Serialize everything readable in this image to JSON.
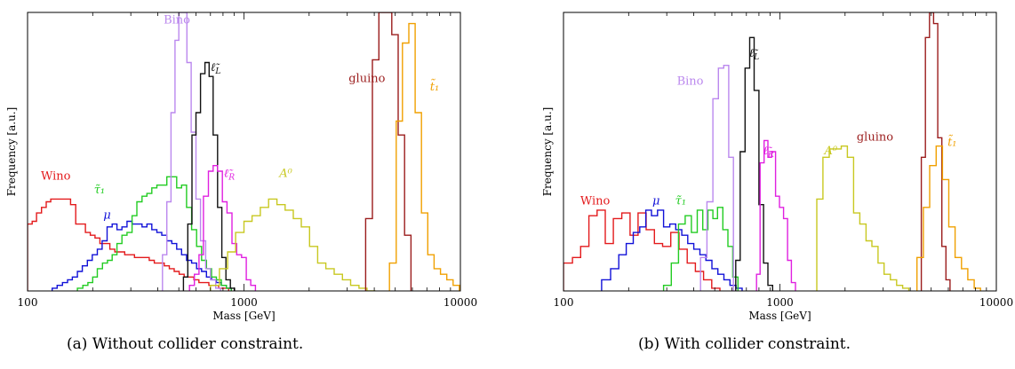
{
  "chart_data": [
    {
      "type": "histogram",
      "caption": "(a)  Without collider constraint.",
      "xlabel": "Mass [GeV]",
      "ylabel": "Frequency [a.u.]",
      "xscale": "log",
      "xlim": [
        100,
        10000
      ],
      "ylim": [
        0,
        1
      ],
      "xticks": [
        "100",
        "1000",
        "10000"
      ],
      "grid": false,
      "series": [
        {
          "name": "Wino",
          "color": "#e31a1c",
          "label_pos": [
            135,
            0.4
          ],
          "edges": [
            100,
            105,
            110,
            116,
            122,
            128,
            135,
            142,
            150,
            158,
            167,
            176,
            185,
            195,
            205,
            216,
            228,
            240,
            253,
            267,
            281,
            296,
            312,
            329,
            347,
            365,
            385,
            406,
            428,
            452,
            476,
            502,
            529,
            557,
            587,
            619,
            652,
            688,
            725,
            764,
            805,
            850
          ],
          "values": [
            0.24,
            0.25,
            0.28,
            0.3,
            0.32,
            0.33,
            0.33,
            0.33,
            0.33,
            0.31,
            0.24,
            0.24,
            0.21,
            0.2,
            0.19,
            0.17,
            0.17,
            0.15,
            0.14,
            0.14,
            0.13,
            0.13,
            0.12,
            0.12,
            0.12,
            0.11,
            0.1,
            0.1,
            0.09,
            0.08,
            0.07,
            0.06,
            0.05,
            0.05,
            0.04,
            0.03,
            0.03,
            0.02,
            0.02,
            0.01,
            0.01
          ]
        },
        {
          "name": "μ",
          "color": "#1111d8",
          "label_pos": [
            233,
            0.26
          ],
          "edges": [
            130,
            137,
            145,
            153,
            161,
            170,
            179,
            189,
            199,
            210,
            221,
            233,
            246,
            259,
            273,
            288,
            304,
            320,
            338,
            356,
            375,
            396,
            417,
            440,
            464,
            489,
            515,
            543,
            573,
            604,
            637,
            671,
            708,
            746,
            786,
            829,
            874
          ],
          "values": [
            0.01,
            0.02,
            0.03,
            0.04,
            0.05,
            0.07,
            0.09,
            0.11,
            0.13,
            0.15,
            0.18,
            0.23,
            0.24,
            0.22,
            0.23,
            0.25,
            0.24,
            0.24,
            0.23,
            0.24,
            0.22,
            0.21,
            0.2,
            0.18,
            0.17,
            0.15,
            0.13,
            0.11,
            0.1,
            0.08,
            0.07,
            0.05,
            0.04,
            0.03,
            0.02,
            0.01
          ]
        },
        {
          "name": "τ̃₁",
          "color": "#22cc22",
          "label_pos": [
            215,
            0.35
          ],
          "edges": [
            170,
            180,
            190,
            200,
            210,
            222,
            234,
            246,
            259,
            273,
            288,
            304,
            320,
            338,
            356,
            375,
            396,
            417,
            440,
            464,
            489,
            515,
            543,
            573,
            604,
            637,
            671,
            708,
            746,
            786,
            829,
            874
          ],
          "values": [
            0.01,
            0.02,
            0.03,
            0.05,
            0.08,
            0.1,
            0.11,
            0.13,
            0.17,
            0.2,
            0.21,
            0.27,
            0.32,
            0.34,
            0.35,
            0.37,
            0.38,
            0.38,
            0.41,
            0.41,
            0.37,
            0.38,
            0.3,
            0.22,
            0.16,
            0.11,
            0.08,
            0.05,
            0.04,
            0.02,
            0.01
          ]
        },
        {
          "name": "Bino",
          "color": "#bb88ee",
          "label_pos": [
            490,
            0.96
          ],
          "edges": [
            420,
            440,
            460,
            480,
            500,
            520,
            545,
            570,
            600,
            630,
            665,
            700,
            740,
            780
          ],
          "values": [
            0.13,
            0.32,
            0.64,
            0.9,
            1.0,
            1.0,
            0.82,
            0.57,
            0.33,
            0.18,
            0.08,
            0.04,
            0.01
          ]
        },
        {
          "name": "ℓ̃L",
          "color": "#111111",
          "label_pos": [
            740,
            0.79
          ],
          "edges": [
            525,
            550,
            575,
            600,
            630,
            660,
            690,
            720,
            755,
            790,
            825,
            865,
            905
          ],
          "values": [
            0.05,
            0.24,
            0.56,
            0.64,
            0.78,
            0.82,
            0.77,
            0.56,
            0.3,
            0.12,
            0.04,
            0.01
          ]
        },
        {
          "name": "ℓ̃R",
          "color": "#e020e0",
          "label_pos": [
            855,
            0.41
          ],
          "edges": [
            560,
            590,
            620,
            650,
            685,
            720,
            755,
            795,
            835,
            880,
            925,
            975,
            1025,
            1075,
            1130
          ],
          "values": [
            0.02,
            0.06,
            0.13,
            0.34,
            0.43,
            0.45,
            0.43,
            0.32,
            0.28,
            0.17,
            0.13,
            0.12,
            0.04,
            0.02
          ]
        },
        {
          "name": "A⁰",
          "color": "#c8c820",
          "label_pos": [
            1560,
            0.41
          ],
          "edges": [
            700,
            770,
            840,
            915,
            1000,
            1090,
            1190,
            1300,
            1420,
            1550,
            1690,
            1840,
            2010,
            2190,
            2390,
            2610,
            2850,
            3110,
            3400,
            3700,
            4050
          ],
          "values": [
            0.02,
            0.08,
            0.14,
            0.21,
            0.25,
            0.27,
            0.3,
            0.33,
            0.31,
            0.29,
            0.26,
            0.23,
            0.16,
            0.1,
            0.08,
            0.06,
            0.04,
            0.02,
            0.01,
            0.0
          ]
        },
        {
          "name": "gluino",
          "color": "#9b1d1d",
          "label_pos": [
            3700,
            0.75
          ],
          "edges": [
            3650,
            3920,
            4200,
            4500,
            4820,
            5160,
            5520,
            5910
          ],
          "values": [
            0.26,
            0.83,
            1.0,
            1.0,
            0.92,
            0.56,
            0.2
          ]
        },
        {
          "name": "t̃₁",
          "color": "#f0a000",
          "label_pos": [
            7600,
            0.72
          ],
          "edges": [
            4700,
            5050,
            5400,
            5780,
            6180,
            6610,
            7070,
            7560,
            8090,
            8650,
            9250,
            9890
          ],
          "values": [
            0.1,
            0.61,
            0.89,
            0.96,
            0.64,
            0.28,
            0.13,
            0.08,
            0.06,
            0.04,
            0.02
          ]
        }
      ]
    },
    {
      "type": "histogram",
      "caption": "(b)  With collider constraint.",
      "xlabel": "Mass [GeV]",
      "ylabel": "Frequency [a.u.]",
      "xscale": "log",
      "xlim": [
        100,
        10000
      ],
      "ylim": [
        0,
        1
      ],
      "xticks": [
        "100",
        "1000",
        "10000"
      ],
      "grid": false,
      "series": [
        {
          "name": "Wino",
          "color": "#e31a1c",
          "label_pos": [
            140,
            0.31
          ],
          "edges": [
            100,
            110,
            120,
            131,
            143,
            156,
            170,
            186,
            203,
            221,
            241,
            263,
            287,
            313,
            342,
            373,
            407,
            444,
            484,
            528
          ],
          "values": [
            0.1,
            0.12,
            0.16,
            0.27,
            0.29,
            0.17,
            0.26,
            0.28,
            0.2,
            0.28,
            0.22,
            0.17,
            0.16,
            0.21,
            0.15,
            0.1,
            0.07,
            0.04,
            0.01
          ]
        },
        {
          "name": "μ",
          "color": "#1111d8",
          "label_pos": [
            268,
            0.31
          ],
          "edges": [
            150,
            165,
            180,
            195,
            210,
            225,
            240,
            255,
            272,
            290,
            310,
            330,
            352,
            375,
            400,
            427,
            455,
            485,
            517,
            551,
            588,
            627,
            669
          ],
          "values": [
            0.04,
            0.08,
            0.13,
            0.17,
            0.21,
            0.23,
            0.29,
            0.27,
            0.29,
            0.23,
            0.24,
            0.22,
            0.2,
            0.17,
            0.15,
            0.13,
            0.11,
            0.08,
            0.06,
            0.04,
            0.02,
            0.01
          ]
        },
        {
          "name": "τ̃₁",
          "color": "#22cc22",
          "label_pos": [
            348,
            0.31
          ],
          "edges": [
            290,
            315,
            340,
            365,
            390,
            415,
            440,
            465,
            490,
            515,
            545,
            575,
            605,
            640
          ],
          "values": [
            0.02,
            0.1,
            0.24,
            0.27,
            0.21,
            0.29,
            0.22,
            0.29,
            0.26,
            0.3,
            0.22,
            0.16,
            0.05
          ]
        },
        {
          "name": "Bino",
          "color": "#bb88ee",
          "label_pos": [
            385,
            0.74
          ],
          "edges": [
            430,
            460,
            490,
            520,
            550,
            580,
            610
          ],
          "values": [
            0.12,
            0.32,
            0.69,
            0.8,
            0.81,
            0.48
          ]
        },
        {
          "name": "ℓ̃L",
          "color": "#111111",
          "label_pos": [
            760,
            0.84
          ],
          "edges": [
            625,
            655,
            690,
            725,
            760,
            800,
            840,
            880,
            925
          ],
          "values": [
            0.11,
            0.5,
            0.8,
            0.91,
            0.72,
            0.31,
            0.1,
            0.02
          ]
        },
        {
          "name": "ℓ̃R",
          "color": "#e020e0",
          "label_pos": [
            885,
            0.49
          ],
          "edges": [
            780,
            810,
            845,
            880,
            915,
            955,
            995,
            1040,
            1085,
            1130,
            1180
          ],
          "values": [
            0.06,
            0.46,
            0.54,
            0.48,
            0.5,
            0.34,
            0.3,
            0.26,
            0.11,
            0.03
          ]
        },
        {
          "name": "A⁰",
          "color": "#c8c820",
          "label_pos": [
            1720,
            0.49
          ],
          "edges": [
            1480,
            1580,
            1690,
            1800,
            1920,
            2050,
            2190,
            2340,
            2500,
            2660,
            2840,
            3030,
            3240,
            3460,
            3690,
            3940
          ],
          "values": [
            0.33,
            0.48,
            0.51,
            0.51,
            0.52,
            0.48,
            0.28,
            0.24,
            0.18,
            0.16,
            0.1,
            0.06,
            0.04,
            0.02,
            0.01
          ]
        },
        {
          "name": "gluino",
          "color": "#9b1d1d",
          "label_pos": [
            2750,
            0.54
          ],
          "edges": [
            4500,
            4700,
            4910,
            5130,
            5360,
            5600,
            5850,
            6110
          ],
          "values": [
            0.48,
            0.91,
            1.0,
            0.96,
            0.55,
            0.16,
            0.04
          ]
        },
        {
          "name": "t̃₁",
          "color": "#f0a000",
          "label_pos": [
            6250,
            0.52
          ],
          "edges": [
            4300,
            4600,
            4920,
            5270,
            5640,
            6030,
            6450,
            6900,
            7380,
            7900,
            8450
          ],
          "values": [
            0.12,
            0.3,
            0.45,
            0.52,
            0.4,
            0.23,
            0.12,
            0.08,
            0.04,
            0.01
          ]
        }
      ]
    }
  ]
}
